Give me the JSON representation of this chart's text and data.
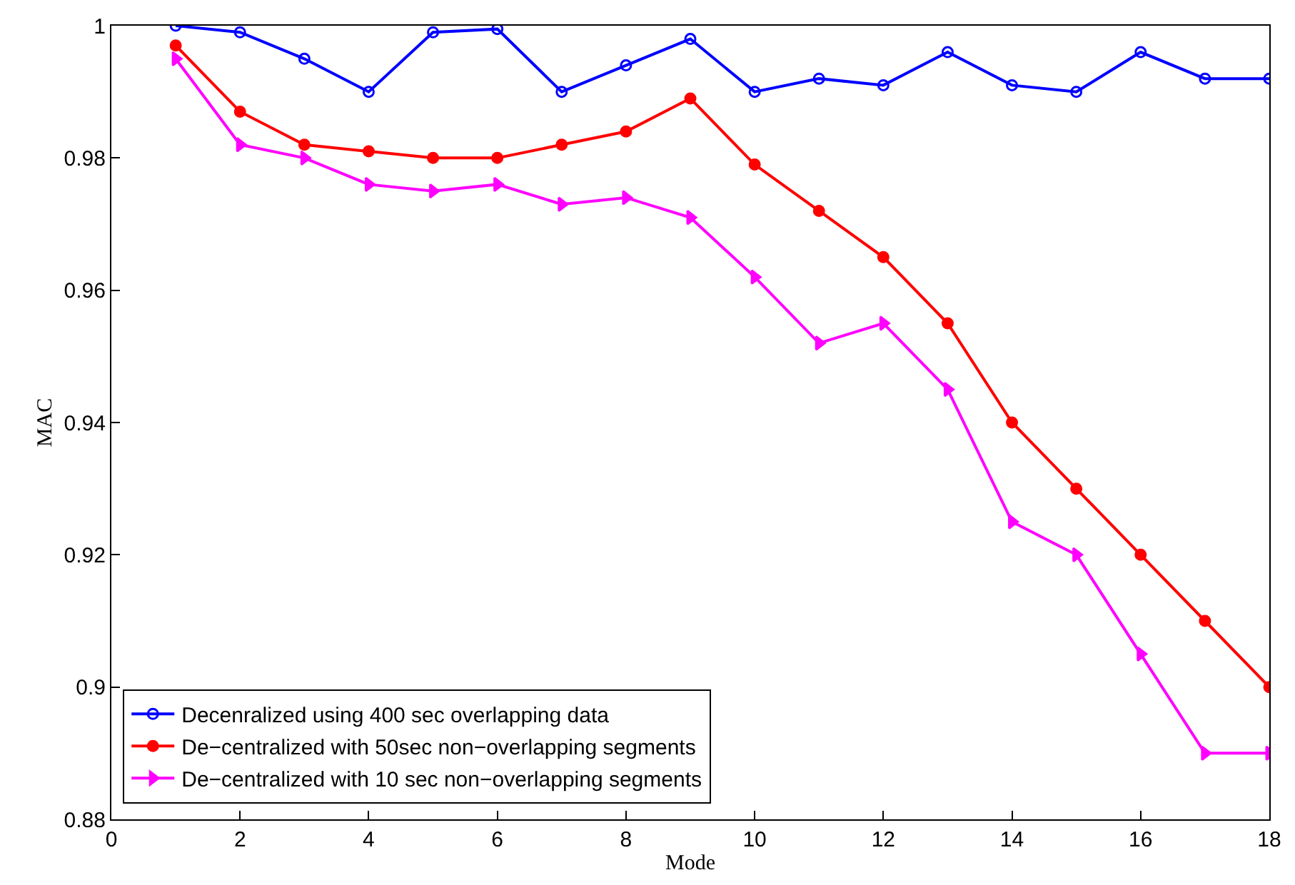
{
  "chart_data": {
    "type": "line",
    "xlabel": "Mode",
    "ylabel": "MAC",
    "x": [
      1,
      2,
      3,
      4,
      5,
      6,
      7,
      8,
      9,
      10,
      11,
      12,
      13,
      14,
      15,
      16,
      17,
      18
    ],
    "series": [
      {
        "name": "Decenralized using 400 sec overlapping data",
        "color": "#0000ff",
        "marker": "circle-open",
        "values": [
          1.0,
          0.999,
          0.995,
          0.99,
          0.999,
          0.9995,
          0.99,
          0.994,
          0.998,
          0.99,
          0.992,
          0.991,
          0.996,
          0.991,
          0.99,
          0.996,
          0.992,
          0.992
        ]
      },
      {
        "name": "De−centralized with 50sec non−overlapping segments",
        "color": "#ff0000",
        "marker": "circle",
        "values": [
          0.997,
          0.987,
          0.982,
          0.981,
          0.98,
          0.98,
          0.982,
          0.984,
          0.989,
          0.979,
          0.972,
          0.965,
          0.955,
          0.94,
          0.93,
          0.92,
          0.91,
          0.9
        ]
      },
      {
        "name": "De−centralized with 10 sec non−overlapping segments",
        "color": "#ff00ff",
        "marker": "triangle-right",
        "values": [
          0.995,
          0.982,
          0.98,
          0.976,
          0.975,
          0.976,
          0.973,
          0.974,
          0.971,
          0.962,
          0.952,
          0.955,
          0.945,
          0.925,
          0.92,
          0.905,
          0.89,
          0.89
        ]
      }
    ],
    "xlim": [
      0,
      18
    ],
    "xticks": [
      0,
      2,
      4,
      6,
      8,
      10,
      12,
      14,
      16,
      18
    ],
    "ylim": [
      0.88,
      1
    ],
    "yticks": [
      0.88,
      0.9,
      0.92,
      0.94,
      0.96,
      0.98,
      1
    ],
    "legend": "bottom left",
    "line_style": "solid"
  }
}
